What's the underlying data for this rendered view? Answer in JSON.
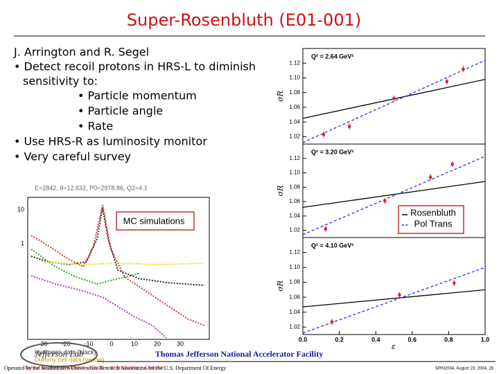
{
  "title": "Super-Rosenbluth (E01-001)",
  "authors": "J. Arrington and R. Segel",
  "bullets": [
    "• Detect recoil protons in HRS-L to diminish",
    "sensitivity to:",
    "• Particle momentum",
    "• Particle angle",
    "• Rate",
    "• Use HRS-R as luminosity monitor",
    "• Very careful survey"
  ],
  "simulation_plot": {
    "header": "E=2842, θ=12.632, P0=2978.86, Q2=4.1",
    "label": "MC simulations",
    "yticks": [
      "10",
      "1"
    ],
    "xticks": [
      "-30",
      "-20",
      "-10",
      "0",
      "10",
      "20",
      "30"
    ],
    "legend": [
      "Hydrogen data (black)",
      "Dummy cell data (yellow)",
      "Sum of all three simulations – Elastic + π° production + Compton"
    ]
  },
  "legend": [
    "Rosenbluth",
    "Pol Trans"
  ],
  "chart_data": [
    {
      "type": "scatter",
      "title": "Q² = 2.64 GeV²",
      "ylabel": "σR",
      "x": [
        0.114,
        0.255,
        0.5,
        0.79,
        0.88
      ],
      "values": [
        1.023,
        1.034,
        1.072,
        1.095,
        1.112
      ],
      "errors": [
        0.004,
        0.004,
        0.004,
        0.004,
        0.004
      ],
      "color": "#e02020",
      "lines": [
        {
          "color": "#000000",
          "x": [
            0,
            1
          ],
          "values": [
            1.045,
            1.098
          ]
        },
        {
          "color": "#2a2aee",
          "dashed": true,
          "x": [
            0,
            1
          ],
          "values": [
            1.012,
            1.124
          ]
        }
      ],
      "xlim": [
        0,
        1
      ],
      "ylim": [
        1.01,
        1.14
      ],
      "yticks": [
        1.02,
        1.04,
        1.06,
        1.08,
        {
          "value": 1.1,
          "label": "1.10"
        },
        1.12
      ]
    },
    {
      "type": "scatter",
      "title": "Q² = 3.20 GeV²",
      "ylabel": "σR",
      "x": [
        0.125,
        0.45,
        0.7,
        0.82
      ],
      "values": [
        1.022,
        1.061,
        1.094,
        1.112
      ],
      "errors": [
        0.004,
        0.004,
        0.004,
        0.004
      ],
      "color": "#e02020",
      "lines": [
        {
          "color": "#000000",
          "x": [
            0,
            1
          ],
          "values": [
            1.052,
            1.088
          ]
        },
        {
          "color": "#2a2aee",
          "dashed": true,
          "x": [
            0,
            1
          ],
          "values": [
            1.014,
            1.123
          ]
        }
      ],
      "xlim": [
        0,
        1
      ],
      "ylim": [
        1.01,
        1.14
      ],
      "yticks": [
        1.02,
        1.04,
        1.06,
        1.08,
        {
          "value": 1.1,
          "label": "1.10"
        },
        1.12
      ]
    },
    {
      "type": "scatter",
      "title": "Q² = 4.10 GeV²",
      "ylabel": "σR",
      "xlabel": "ε",
      "x": [
        0.16,
        0.53,
        0.83
      ],
      "values": [
        1.027,
        1.063,
        1.079
      ],
      "errors": [
        0.004,
        0.004,
        0.004
      ],
      "color": "#e02020",
      "lines": [
        {
          "color": "#000000",
          "x": [
            0,
            1
          ],
          "values": [
            1.047,
            1.07
          ]
        },
        {
          "color": "#2a2aee",
          "dashed": true,
          "x": [
            0,
            1
          ],
          "values": [
            1.012,
            1.1
          ]
        }
      ],
      "xlim": [
        0,
        1
      ],
      "ylim": [
        1.01,
        1.14
      ],
      "yticks": [
        1.02,
        1.04,
        1.06,
        1.08,
        {
          "value": 1.1,
          "label": "1.10"
        },
        1.12
      ],
      "xticks": [
        {
          "value": 0,
          "label": "0.0"
        },
        0.2,
        0.4,
        0.6,
        0.8,
        {
          "value": 1,
          "label": "1.0"
        }
      ]
    }
  ],
  "footer": {
    "facility": "Thomas Jefferson National Accelerator Facility",
    "operator": "Operated by the Southeastern Universities Research Association for the U.S. Department Of Energy",
    "logo": "Jefferson Lab",
    "date": "SPIN2004, August 23, 2004, 28"
  }
}
